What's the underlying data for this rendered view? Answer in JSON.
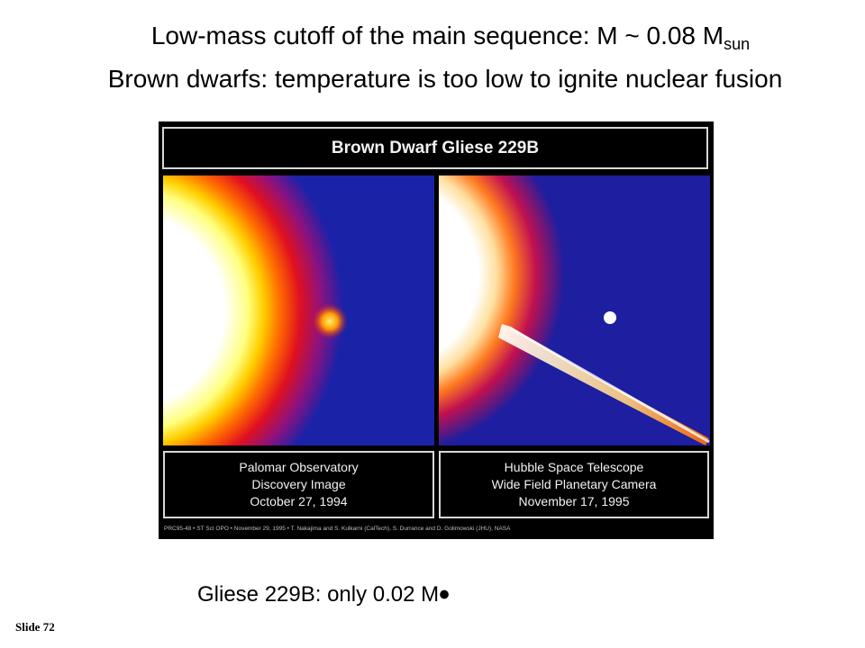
{
  "heading": {
    "line1_text": "Low-mass cutoff of the main sequence: M ~ 0.08 M",
    "line1_subscript": "sun",
    "line2_text": "Brown dwarfs: temperature is too low to ignite nuclear fusion"
  },
  "figure": {
    "title": "Brown Dwarf Gliese 229B",
    "left_caption": [
      "Palomar Observatory",
      "Discovery Image",
      "October 27, 1994"
    ],
    "right_caption": [
      "Hubble Space Telescope",
      "Wide Field Planetary Camera",
      "November 17, 1995"
    ],
    "credit": "PRC95-48 • ST ScI OPO • November 29, 1995 • T. Nakajima and S. Kulkarni (CalTech), S. Durrance and D. Golimowski (JHU), NASA"
  },
  "bottom": {
    "text": "Gliese 229B: only 0.02 M",
    "sun_symbol": "•"
  },
  "slide_number": "Slide 72"
}
